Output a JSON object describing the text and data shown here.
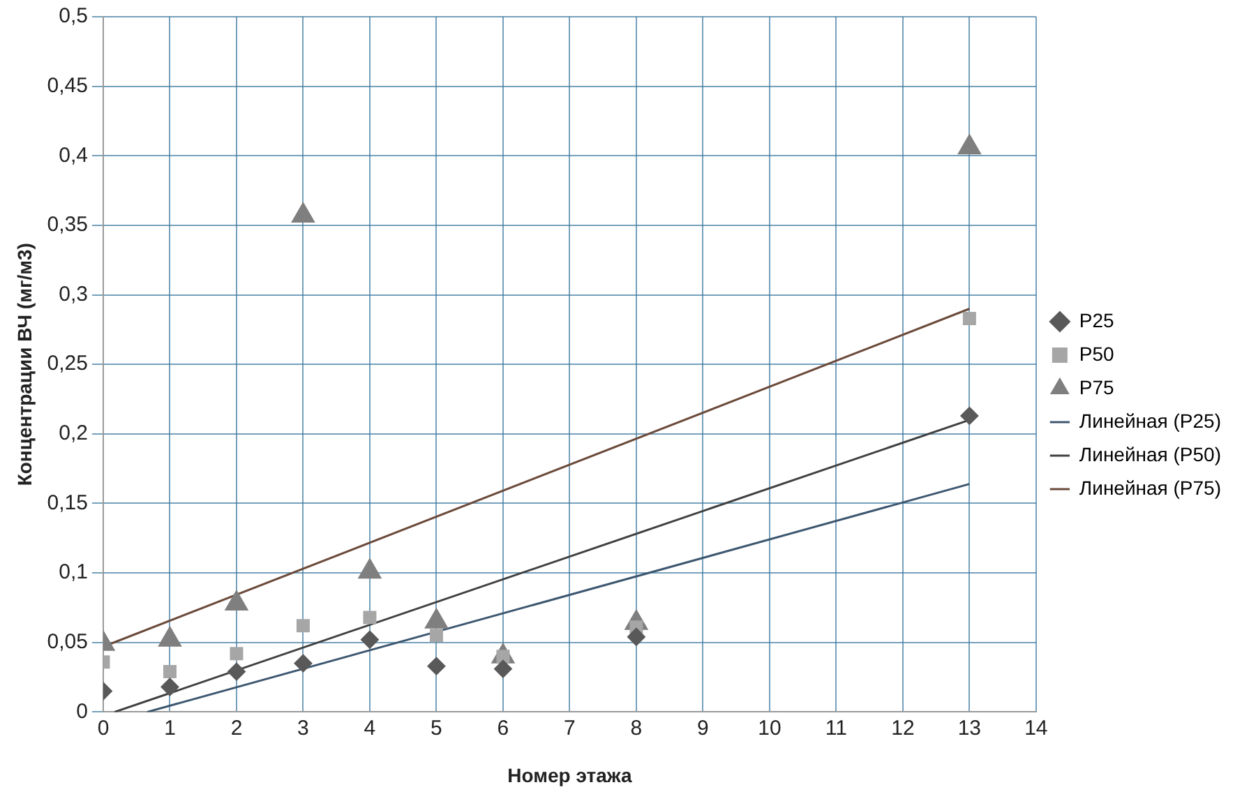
{
  "chart_data": {
    "type": "scatter",
    "xlabel": "Номер этажа",
    "ylabel": "Концентрации ВЧ (мг/м3)",
    "xlim": [
      0,
      14
    ],
    "xticks": [
      0,
      1,
      2,
      3,
      4,
      5,
      6,
      7,
      8,
      9,
      10,
      11,
      12,
      13,
      14
    ],
    "ylim": [
      0,
      0.5
    ],
    "yticks": [
      0,
      {
        "value": 0.05,
        "label": "0,05"
      },
      {
        "value": 0.1,
        "label": "0,1"
      },
      {
        "value": 0.15,
        "label": "0,15"
      },
      {
        "value": 0.2,
        "label": "0,2"
      },
      {
        "value": 0.25,
        "label": "0,25"
      },
      {
        "value": 0.3,
        "label": "0,3"
      },
      {
        "value": 0.35,
        "label": "0,35"
      },
      {
        "value": 0.4,
        "label": "0,4"
      },
      {
        "value": 0.45,
        "label": "0,45"
      },
      {
        "value": 0.5,
        "label": "0,5"
      }
    ],
    "grid": true,
    "legend": "right",
    "series": [
      {
        "name": "P25",
        "type": "scatter",
        "marker": "diamond",
        "color": "#595959",
        "x": [
          0,
          1,
          2,
          3,
          4,
          5,
          6,
          8,
          13
        ],
        "values": [
          0.015,
          0.018,
          0.029,
          0.035,
          0.052,
          0.033,
          0.031,
          0.054,
          0.213
        ]
      },
      {
        "name": "P50",
        "type": "scatter",
        "marker": "square",
        "color": "#a6a6a6",
        "x": [
          0,
          1,
          2,
          3,
          4,
          5,
          6,
          8,
          13
        ],
        "values": [
          0.036,
          0.029,
          0.042,
          0.062,
          0.068,
          0.055,
          0.04,
          0.061,
          0.283
        ]
      },
      {
        "name": "P75",
        "type": "scatter",
        "marker": "triangle",
        "color": "#7f7f7f",
        "x": [
          0,
          1,
          2,
          3,
          4,
          5,
          6,
          8,
          13
        ],
        "values": [
          0.049,
          0.052,
          0.078,
          0.357,
          0.101,
          0.065,
          0.04,
          0.064,
          0.406
        ]
      },
      {
        "name": "Линейная (P25)",
        "type": "line",
        "marker": "none",
        "line_style": "solid",
        "color": "#3d5770",
        "x": [
          0.66,
          13
        ],
        "values": [
          0,
          0.164
        ]
      },
      {
        "name": "Линейная (P50)",
        "type": "line",
        "marker": "none",
        "line_style": "solid",
        "color": "#404040",
        "x": [
          0.17,
          13
        ],
        "values": [
          0,
          0.21
        ]
      },
      {
        "name": "Линейная (P75)",
        "type": "line",
        "marker": "none",
        "line_style": "solid",
        "color": "#6b4a3a",
        "x": [
          0,
          13
        ],
        "values": [
          0.047,
          0.29
        ]
      }
    ]
  }
}
